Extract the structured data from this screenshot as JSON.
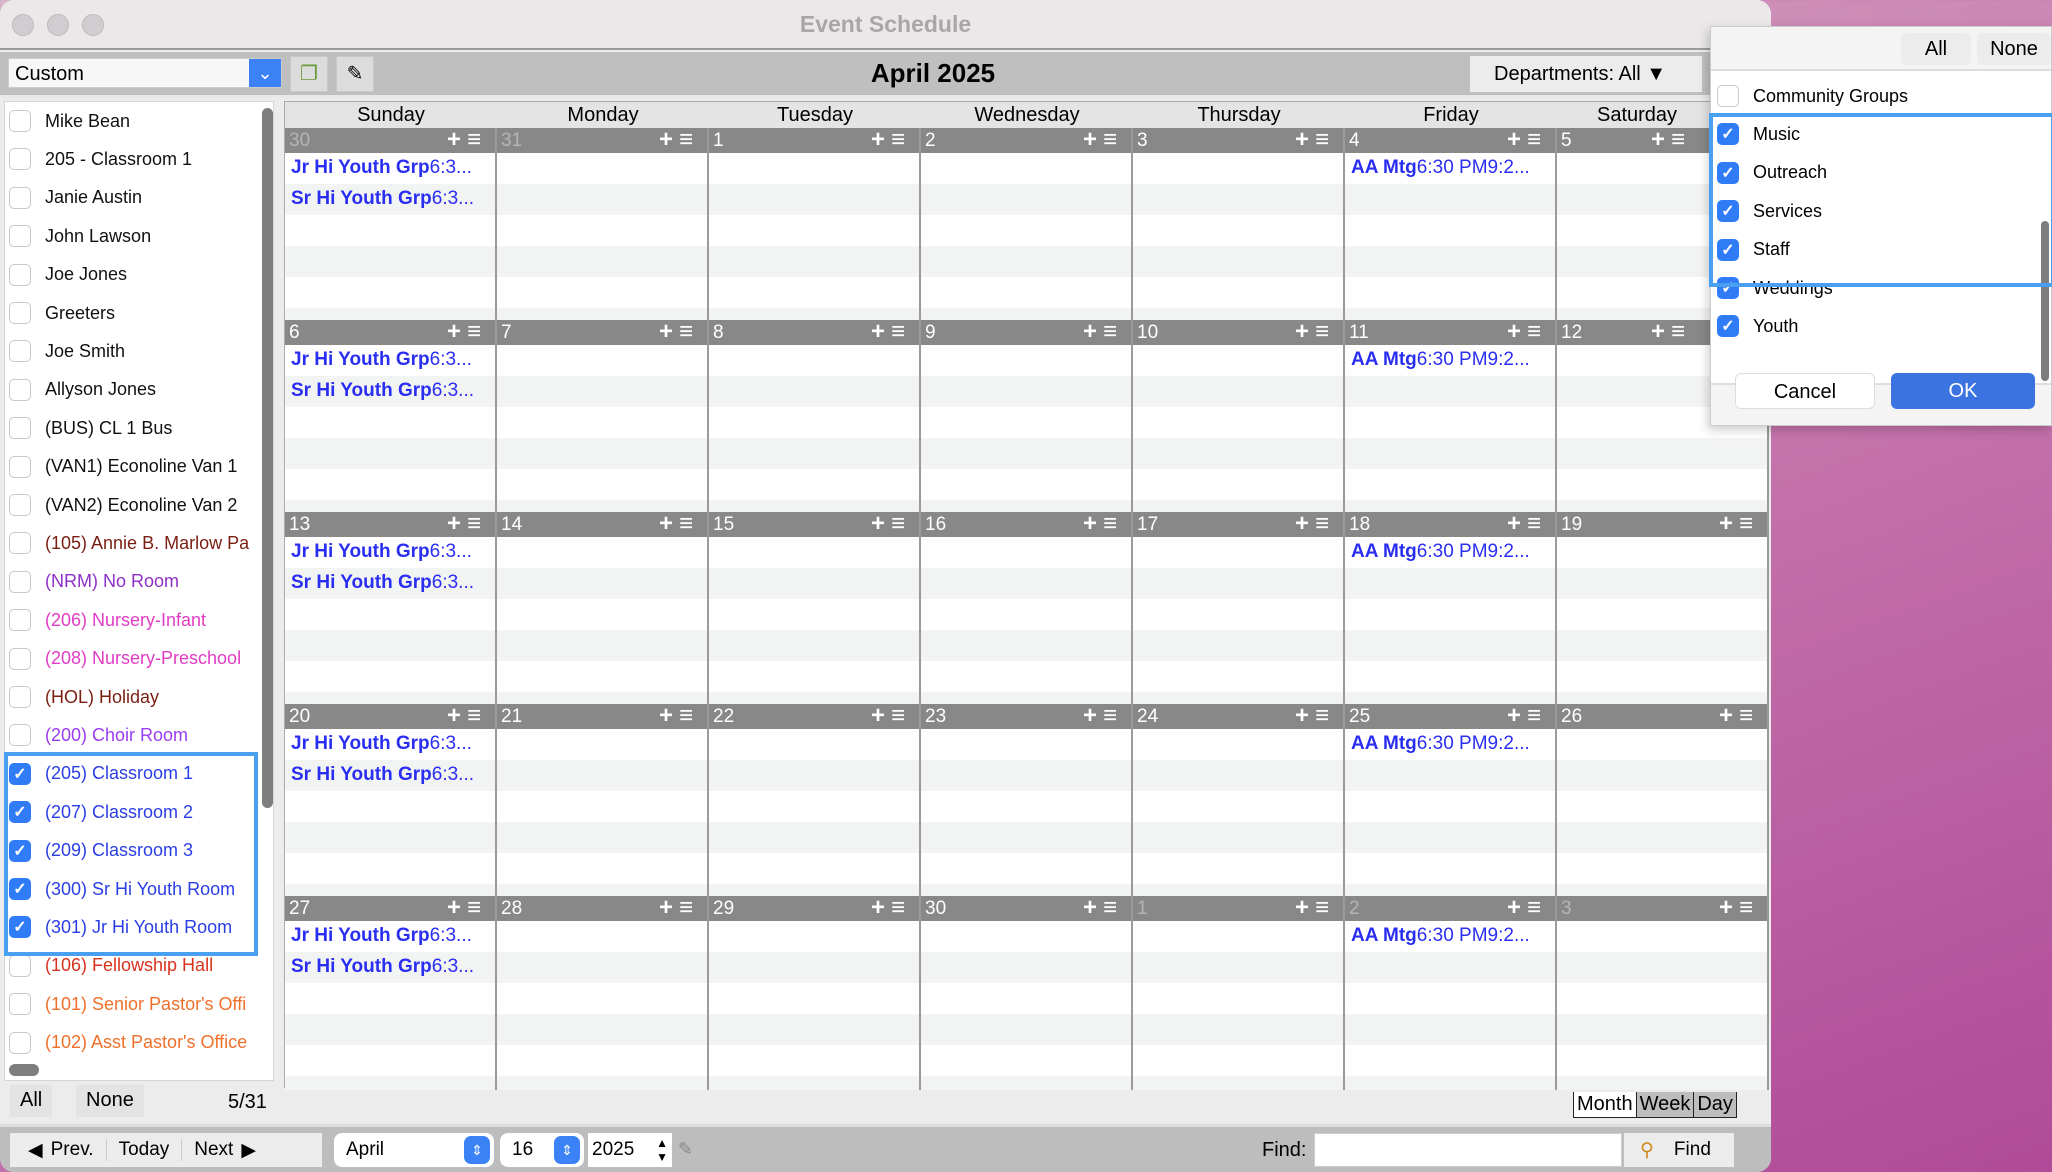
{
  "window": {
    "title": "Event Schedule"
  },
  "toolbar": {
    "view_select": "Custom",
    "month_title": "April 2025",
    "departments": "Departments: All"
  },
  "sidebar": {
    "items": [
      {
        "label": "Mike Bean",
        "checked": false,
        "color": "#111111"
      },
      {
        "label": "205 - Classroom 1",
        "checked": false,
        "color": "#111111"
      },
      {
        "label": "Janie Austin",
        "checked": false,
        "color": "#111111"
      },
      {
        "label": "John Lawson",
        "checked": false,
        "color": "#111111"
      },
      {
        "label": "Joe Jones",
        "checked": false,
        "color": "#111111"
      },
      {
        "label": "Greeters",
        "checked": false,
        "color": "#111111"
      },
      {
        "label": "Joe Smith",
        "checked": false,
        "color": "#111111"
      },
      {
        "label": "Allyson Jones",
        "checked": false,
        "color": "#111111"
      },
      {
        "label": "(BUS) CL 1 Bus",
        "checked": false,
        "color": "#111111"
      },
      {
        "label": "(VAN1) Econoline Van 1",
        "checked": false,
        "color": "#111111"
      },
      {
        "label": "(VAN2) Econoline Van 2",
        "checked": false,
        "color": "#111111"
      },
      {
        "label": "(105) Annie B. Marlow Pa",
        "checked": false,
        "color": "#7a1e12"
      },
      {
        "label": "(NRM) No Room",
        "checked": false,
        "color": "#8e2fc8"
      },
      {
        "label": "(206) Nursery-Infant",
        "checked": false,
        "color": "#e23cc4"
      },
      {
        "label": "(208) Nursery-Preschool",
        "checked": false,
        "color": "#e23cc4"
      },
      {
        "label": "(HOL) Holiday",
        "checked": false,
        "color": "#7a1e12"
      },
      {
        "label": "(200) Choir Room",
        "checked": false,
        "color": "#9a3cf0"
      },
      {
        "label": "(205) Classroom 1",
        "checked": true,
        "color": "#2a3ee6"
      },
      {
        "label": "(207) Classroom 2",
        "checked": true,
        "color": "#2a3ee6"
      },
      {
        "label": "(209) Classroom 3",
        "checked": true,
        "color": "#2a3ee6"
      },
      {
        "label": "(300) Sr Hi Youth Room",
        "checked": true,
        "color": "#2a3ee6"
      },
      {
        "label": "(301) Jr Hi Youth Room",
        "checked": true,
        "color": "#2a3ee6"
      },
      {
        "label": "(106) Fellowship Hall",
        "checked": false,
        "color": "#d8321e"
      },
      {
        "label": "(101) Senior Pastor's Offi",
        "checked": false,
        "color": "#f0702a"
      },
      {
        "label": "(102) Asst Pastor's Office",
        "checked": false,
        "color": "#f0702a"
      }
    ],
    "all_label": "All",
    "none_label": "None",
    "count": "5/31"
  },
  "calendar": {
    "day_names": [
      "Sunday",
      "Monday",
      "Tuesday",
      "Wednesday",
      "Thursday",
      "Friday",
      "Saturday"
    ],
    "event_color": "#2a2ef0",
    "weeks": [
      [
        {
          "num": "30",
          "muted": true,
          "events": [
            {
              "title": "Jr Hi Youth Grp",
              "time": "6:3..."
            },
            {
              "title": "Sr Hi Youth Grp",
              "time": "6:3..."
            }
          ]
        },
        {
          "num": "31",
          "muted": true,
          "events": []
        },
        {
          "num": "1",
          "events": []
        },
        {
          "num": "2",
          "events": []
        },
        {
          "num": "3",
          "events": []
        },
        {
          "num": "4",
          "events": [
            {
              "title": "AA Mtg",
              "time": "6:30 PM9:2..."
            }
          ]
        },
        {
          "num": "5",
          "events": []
        }
      ],
      [
        {
          "num": "6",
          "events": [
            {
              "title": "Jr Hi Youth Grp",
              "time": "6:3..."
            },
            {
              "title": "Sr Hi Youth Grp",
              "time": "6:3..."
            }
          ]
        },
        {
          "num": "7",
          "events": []
        },
        {
          "num": "8",
          "events": []
        },
        {
          "num": "9",
          "events": []
        },
        {
          "num": "10",
          "events": []
        },
        {
          "num": "11",
          "events": [
            {
              "title": "AA Mtg",
              "time": "6:30 PM9:2..."
            }
          ]
        },
        {
          "num": "12",
          "events": []
        }
      ],
      [
        {
          "num": "13",
          "events": [
            {
              "title": "Jr Hi Youth Grp",
              "time": "6:3..."
            },
            {
              "title": "Sr Hi Youth Grp",
              "time": "6:3..."
            }
          ]
        },
        {
          "num": "14",
          "events": []
        },
        {
          "num": "15",
          "events": []
        },
        {
          "num": "16",
          "events": []
        },
        {
          "num": "17",
          "events": []
        },
        {
          "num": "18",
          "events": [
            {
              "title": "AA Mtg",
              "time": "6:30 PM9:2..."
            }
          ]
        },
        {
          "num": "19",
          "events": []
        }
      ],
      [
        {
          "num": "20",
          "events": [
            {
              "title": "Jr Hi Youth Grp",
              "time": "6:3..."
            },
            {
              "title": "Sr Hi Youth Grp",
              "time": "6:3..."
            }
          ]
        },
        {
          "num": "21",
          "events": []
        },
        {
          "num": "22",
          "events": []
        },
        {
          "num": "23",
          "events": []
        },
        {
          "num": "24",
          "events": []
        },
        {
          "num": "25",
          "events": [
            {
              "title": "AA Mtg",
              "time": "6:30 PM9:2..."
            }
          ]
        },
        {
          "num": "26",
          "events": []
        }
      ],
      [
        {
          "num": "27",
          "events": [
            {
              "title": "Jr Hi Youth Grp",
              "time": "6:3..."
            },
            {
              "title": "Sr Hi Youth Grp",
              "time": "6:3..."
            }
          ]
        },
        {
          "num": "28",
          "events": []
        },
        {
          "num": "29",
          "events": []
        },
        {
          "num": "30",
          "events": []
        },
        {
          "num": "1",
          "muted": true,
          "events": []
        },
        {
          "num": "2",
          "muted": true,
          "events": [
            {
              "title": "AA Mtg",
              "time": "6:30 PM9:2..."
            }
          ]
        },
        {
          "num": "3",
          "muted": true,
          "events": []
        }
      ]
    ],
    "views": [
      {
        "label": "Month",
        "active": true
      },
      {
        "label": "Week"
      },
      {
        "label": "Day"
      }
    ]
  },
  "bottom": {
    "prev": "Prev.",
    "today": "Today",
    "next": "Next",
    "month": "April",
    "day": "16",
    "year": "2025",
    "find_label": "Find:",
    "find_value": "",
    "find_button": "Find"
  },
  "departments_popup": {
    "all_label": "All",
    "none_label": "None",
    "items": [
      {
        "label": "Community Groups",
        "checked": false
      },
      {
        "label": "Music",
        "checked": true
      },
      {
        "label": "Outreach",
        "checked": true
      },
      {
        "label": "Services",
        "checked": true
      },
      {
        "label": "Staff",
        "checked": true
      },
      {
        "label": "Weddings",
        "checked": true
      },
      {
        "label": "Youth",
        "checked": true
      }
    ],
    "cancel": "Cancel",
    "ok": "OK"
  }
}
